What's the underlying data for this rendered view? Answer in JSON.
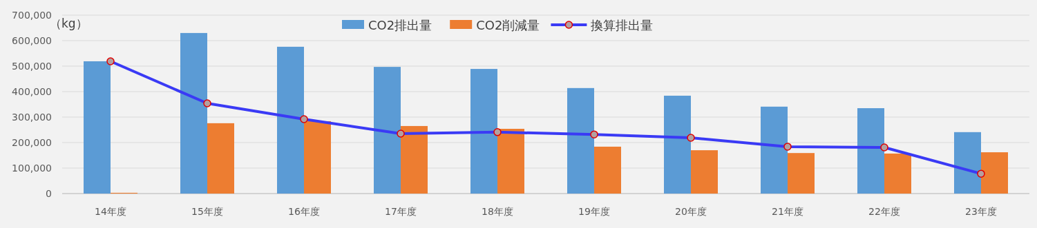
{
  "chart_data": {
    "type": "bar",
    "ylabel": "（kg）",
    "categories": [
      "14年度",
      "15年度",
      "16年度",
      "17年度",
      "18年度",
      "19年度",
      "20年度",
      "21年度",
      "22年度",
      "23年度"
    ],
    "series": [
      {
        "name": "CO2排出量",
        "color": "#5b9bd5",
        "values": [
          519000,
          630000,
          576000,
          497000,
          489000,
          414000,
          384000,
          341000,
          335000,
          241000
        ]
      },
      {
        "name": "CO2削減量",
        "color": "#ed7d31",
        "values": [
          3000,
          276000,
          284000,
          265000,
          254000,
          184000,
          170000,
          159000,
          157000,
          162000
        ]
      },
      {
        "name": "換算排出量",
        "type": "line",
        "color": "#3a3af5",
        "marker": "circle",
        "values": [
          519000,
          354000,
          292000,
          235000,
          241000,
          232000,
          219000,
          184000,
          181000,
          78000
        ]
      }
    ],
    "ylim": [
      0,
      700000
    ],
    "yticks": [
      {
        "value": 0,
        "label": "0"
      },
      {
        "value": 100000,
        "label": "100,000"
      },
      {
        "value": 200000,
        "label": "200,000"
      },
      {
        "value": 300000,
        "label": "300,000"
      },
      {
        "value": 400000,
        "label": "400,000"
      },
      {
        "value": 500000,
        "label": "500,000"
      },
      {
        "value": 600000,
        "label": "600,000"
      },
      {
        "value": 700000,
        "label": "700,000"
      }
    ],
    "grid": "y",
    "legend": "top"
  }
}
